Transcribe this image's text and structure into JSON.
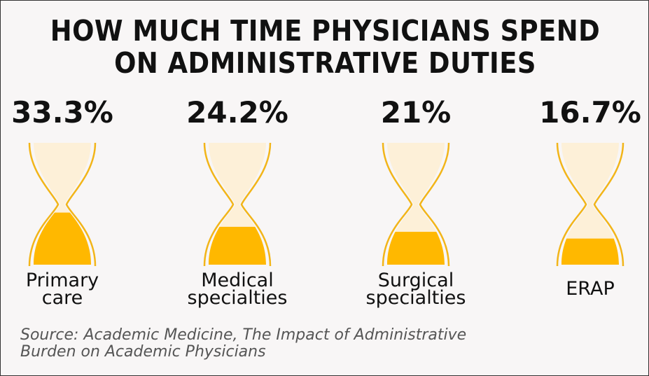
{
  "chart_data": {
    "type": "pictogram",
    "title_lines": [
      "HOW MUCH TIME PHYSICIANS SPEND",
      "ON ADMINISTRATIVE DUTIES"
    ],
    "categories": [
      [
        "Primary",
        "care"
      ],
      [
        "Medical",
        "specialties"
      ],
      [
        "Surgical",
        "specialties"
      ],
      [
        "ERAP"
      ]
    ],
    "values": [
      33.3,
      24.2,
      21,
      16.7
    ],
    "value_labels": [
      "33.3%",
      "24.2%",
      "21%",
      "16.7%"
    ],
    "unit": "%",
    "source_lines": [
      "Source: Academic Medicine, The Impact of Administrative",
      "Burden on Academic Physicians"
    ]
  },
  "colors": {
    "sand": "#ffb800",
    "glass": "#fdf0d8",
    "outline": "#f2b519",
    "text": "#111111",
    "background": "#f8f6f6"
  }
}
